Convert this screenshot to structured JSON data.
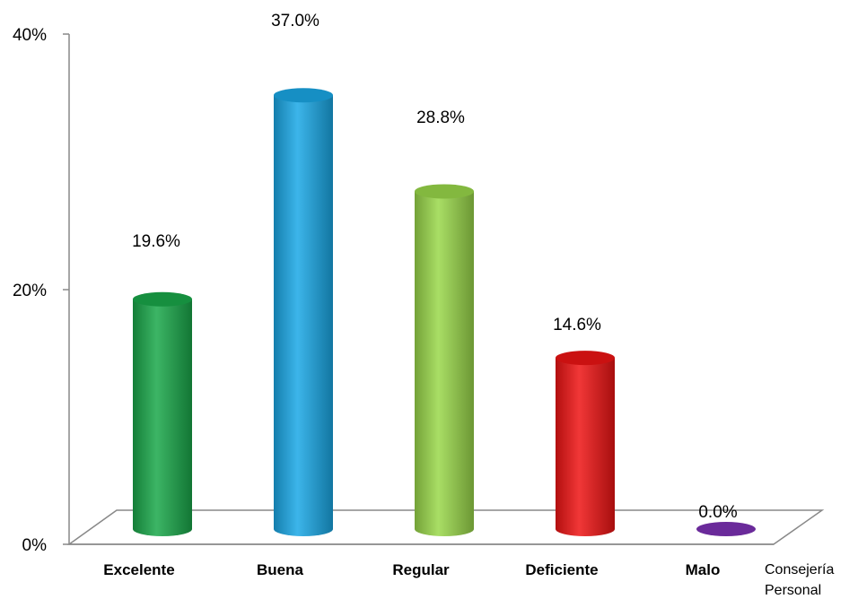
{
  "chart_data": {
    "type": "bar",
    "categories": [
      "Excelente",
      "Buena",
      "Regular",
      "Deficiente",
      "Malo"
    ],
    "values": [
      19.6,
      37.0,
      28.8,
      14.6,
      0.0
    ],
    "data_labels": [
      "19.6%",
      "37.0%",
      "28.8%",
      "14.6%",
      "0.0%"
    ],
    "colors": [
      "#1aa84a",
      "#1aa8e6",
      "#9ad84a",
      "#ee1414",
      "#6a2a9a"
    ],
    "ylim": [
      0,
      40
    ],
    "y_ticks": [
      "0%",
      "20%",
      "40%"
    ],
    "series_label_lines": [
      "Consejería",
      "Personal"
    ],
    "grid": false
  }
}
